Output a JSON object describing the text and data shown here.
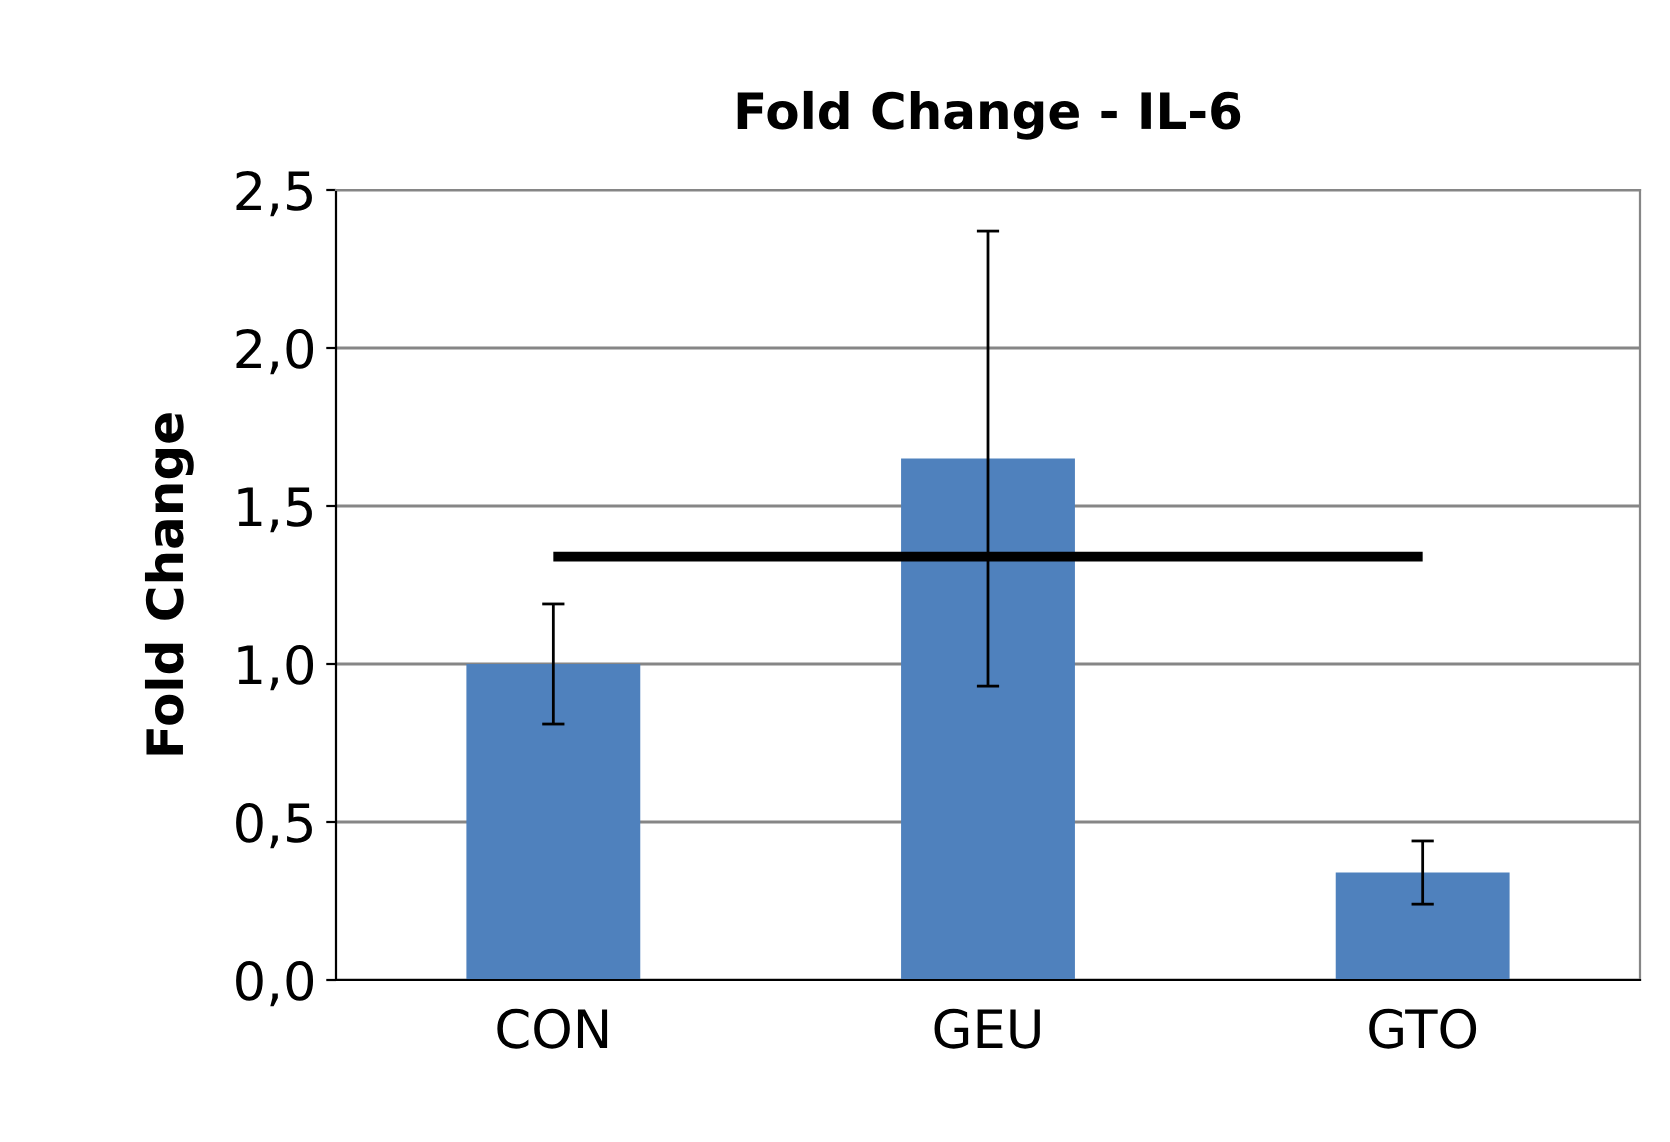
{
  "chart_data": {
    "type": "bar",
    "title": "Fold Change - IL-6",
    "ylabel": "Fold Change",
    "categories": [
      "CON",
      "GEU",
      "GTO"
    ],
    "values": [
      1.0,
      1.65,
      0.34
    ],
    "errors": [
      0.19,
      0.72,
      0.1
    ],
    "color": "#4f81bd",
    "ylim": [
      0,
      2.5
    ],
    "yticks": [
      {
        "value": 0,
        "label": "0,0"
      },
      {
        "value": 0.5,
        "label": "0,5"
      },
      {
        "value": 1.0,
        "label": "1,0"
      },
      {
        "value": 1.5,
        "label": "1,5"
      },
      {
        "value": 2.0,
        "label": "2,0"
      },
      {
        "value": 2.5,
        "label": "2,5"
      }
    ],
    "grid": "y",
    "ref_lines": [
      {
        "axis": "y",
        "value": 1.34,
        "color": "#000000"
      }
    ]
  }
}
